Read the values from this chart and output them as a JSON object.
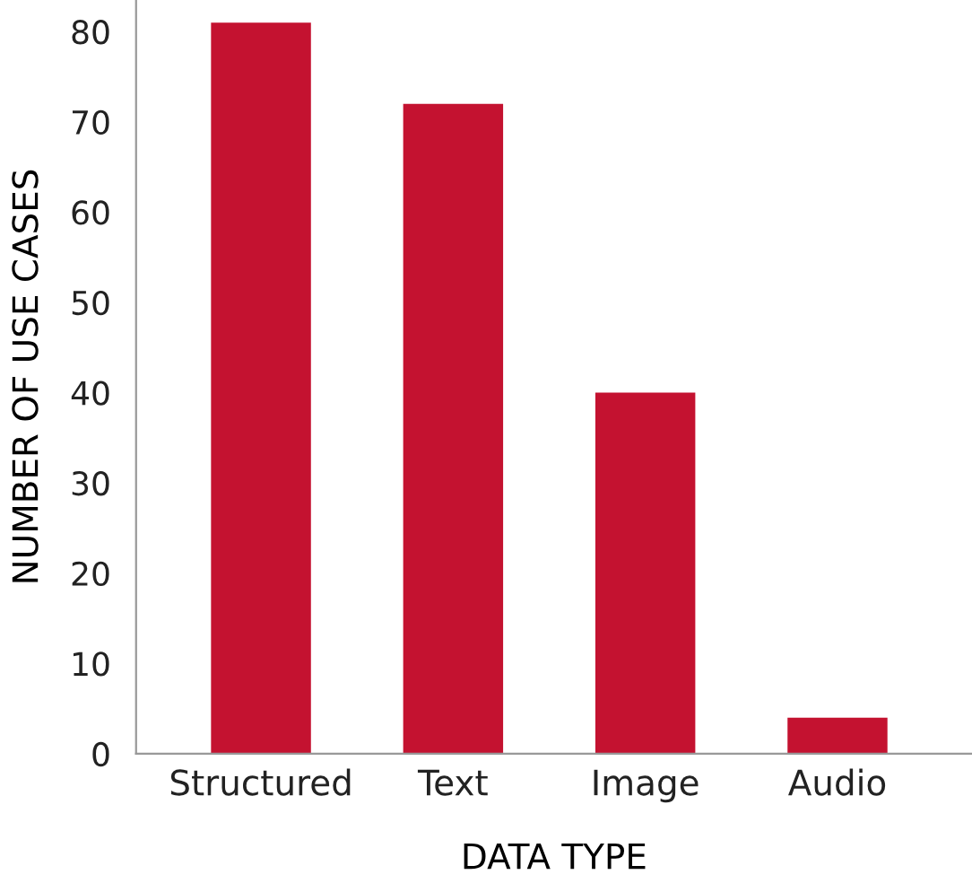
{
  "chart_data": {
    "type": "bar",
    "xlabel": "DATA TYPE",
    "ylabel": "NUMBER OF USE CASES",
    "categories": [
      "Structured",
      "Text",
      "Image",
      "Audio"
    ],
    "values": [
      81,
      72,
      40,
      4
    ],
    "color": "#c41230",
    "ylim": [
      0,
      83.5
    ],
    "yticks": [
      0,
      10,
      20,
      30,
      40,
      50,
      60,
      70,
      80
    ],
    "grid": false
  }
}
